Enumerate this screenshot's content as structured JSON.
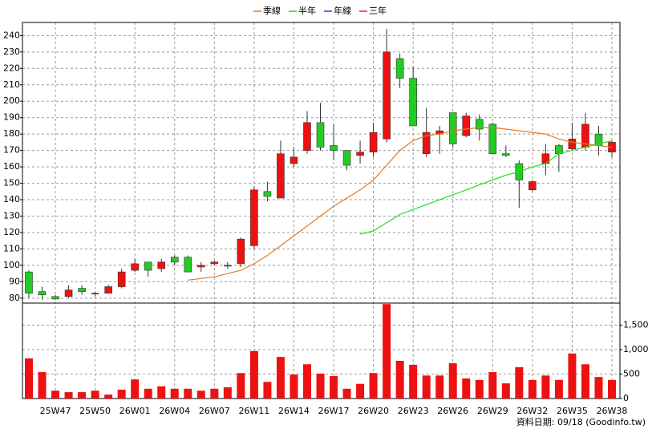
{
  "chart_data": [
    {
      "type": "candlestick",
      "open": [
        96,
        84,
        81,
        81,
        86,
        83,
        83,
        87,
        97,
        102,
        98,
        105,
        105,
        99,
        101,
        100,
        101,
        112,
        145,
        141,
        162,
        170,
        187,
        173,
        170,
        167,
        169,
        177,
        226,
        214,
        168,
        180,
        193,
        179,
        189,
        186,
        168,
        162,
        146,
        162,
        173,
        171,
        172,
        180,
        169
      ],
      "high": [
        97,
        87,
        82,
        88,
        88,
        84,
        88,
        98,
        104,
        102,
        104,
        106,
        106,
        102,
        103,
        102,
        117,
        148,
        151,
        176,
        172,
        194,
        199,
        186,
        170,
        176,
        187,
        244,
        229,
        221,
        196,
        185,
        193,
        193,
        192,
        187,
        173,
        164,
        152,
        174,
        174,
        187,
        193,
        185,
        176
      ],
      "low": [
        80,
        79,
        79,
        80,
        82,
        81,
        83,
        86,
        96,
        93,
        96,
        100,
        96,
        96,
        100,
        98,
        99,
        110,
        139,
        141,
        160,
        168,
        170,
        164,
        158,
        162,
        166,
        175,
        208,
        185,
        166,
        168,
        172,
        178,
        176,
        168,
        166,
        135,
        145,
        155,
        157,
        170,
        170,
        167,
        166
      ],
      "close": [
        83,
        82,
        79.5,
        85,
        84,
        83,
        87,
        96,
        101,
        97,
        102,
        102,
        96,
        100,
        102,
        100,
        116,
        146,
        142,
        168,
        166,
        187,
        172,
        170,
        161,
        169,
        181,
        230,
        214,
        185,
        181,
        182,
        174,
        191,
        183,
        168,
        167,
        152,
        151,
        168,
        168,
        177,
        186,
        173,
        175
      ],
      "up_color": "#ee1111",
      "down_color": "#22cc22",
      "series": [
        {
          "name": "季線",
          "color": "#e8781e",
          "values": [
            null,
            null,
            null,
            null,
            null,
            null,
            null,
            null,
            null,
            null,
            null,
            null,
            91,
            92,
            93,
            95,
            97,
            101,
            106,
            112,
            118,
            124,
            130,
            136,
            141,
            146,
            152,
            161,
            170,
            176,
            179,
            180,
            182,
            183,
            184,
            184,
            183,
            182,
            181,
            180,
            177,
            175,
            174,
            173,
            172
          ]
        },
        {
          "name": "半年",
          "color": "#22dd22",
          "values": [
            null,
            null,
            null,
            null,
            null,
            null,
            null,
            null,
            null,
            null,
            null,
            null,
            null,
            null,
            null,
            null,
            null,
            null,
            null,
            null,
            null,
            null,
            null,
            null,
            null,
            119,
            121,
            126,
            131,
            134,
            137,
            140,
            143,
            146,
            149,
            152,
            155,
            157,
            160,
            162,
            168,
            170,
            172,
            174,
            176
          ]
        },
        {
          "name": "年線",
          "color": "#2244cc",
          "values": [
            null,
            null,
            null,
            null,
            null,
            null,
            null,
            null,
            null,
            null,
            null,
            null,
            null,
            null,
            null,
            null,
            null,
            null,
            null,
            null,
            null,
            null,
            null,
            null,
            null,
            null,
            null,
            null,
            null,
            null,
            null,
            null,
            null,
            null,
            null,
            null,
            null,
            null,
            null,
            null,
            null,
            null,
            null,
            null,
            null
          ]
        },
        {
          "name": "三年",
          "color": "#dd2222",
          "values": [
            null,
            null,
            null,
            null,
            null,
            null,
            null,
            null,
            null,
            null,
            null,
            null,
            null,
            null,
            null,
            null,
            null,
            null,
            null,
            null,
            null,
            null,
            null,
            null,
            null,
            null,
            null,
            null,
            null,
            null,
            null,
            null,
            null,
            null,
            null,
            null,
            null,
            null,
            null,
            null,
            null,
            null,
            null,
            null,
            null
          ]
        }
      ],
      "ylim": [
        77,
        248
      ],
      "yticks": [
        80,
        90,
        100,
        110,
        120,
        130,
        140,
        150,
        160,
        170,
        180,
        190,
        200,
        210,
        220,
        230,
        240
      ],
      "grid": true
    },
    {
      "type": "bar",
      "categories": [
        null,
        null,
        "25W47",
        null,
        null,
        "25W50",
        null,
        null,
        "26W01",
        null,
        null,
        "26W04",
        null,
        null,
        "26W07",
        null,
        null,
        "26W11",
        null,
        null,
        "26W14",
        null,
        null,
        "26W17",
        null,
        null,
        "26W20",
        null,
        null,
        "26W23",
        null,
        null,
        "26W26",
        null,
        null,
        "26W29",
        null,
        null,
        "26W32",
        null,
        null,
        "26W35",
        null,
        null,
        "26W38"
      ],
      "values": [
        820,
        540,
        160,
        130,
        130,
        160,
        80,
        180,
        390,
        200,
        250,
        200,
        200,
        160,
        200,
        230,
        520,
        970,
        340,
        850,
        490,
        700,
        510,
        460,
        200,
        300,
        520,
        1930,
        770,
        690,
        470,
        470,
        720,
        410,
        380,
        540,
        310,
        640,
        380,
        470,
        380,
        920,
        700,
        440,
        380
      ],
      "color": "#ee1111",
      "ylim": [
        0,
        1950
      ],
      "yticks": [
        0,
        500,
        {
          "value": 1000,
          "label": "1,000"
        },
        {
          "value": 1500,
          "label": "1,500"
        }
      ],
      "grid": true
    }
  ],
  "footer": "資料日期: 09/18  (Goodinfo.tw)"
}
